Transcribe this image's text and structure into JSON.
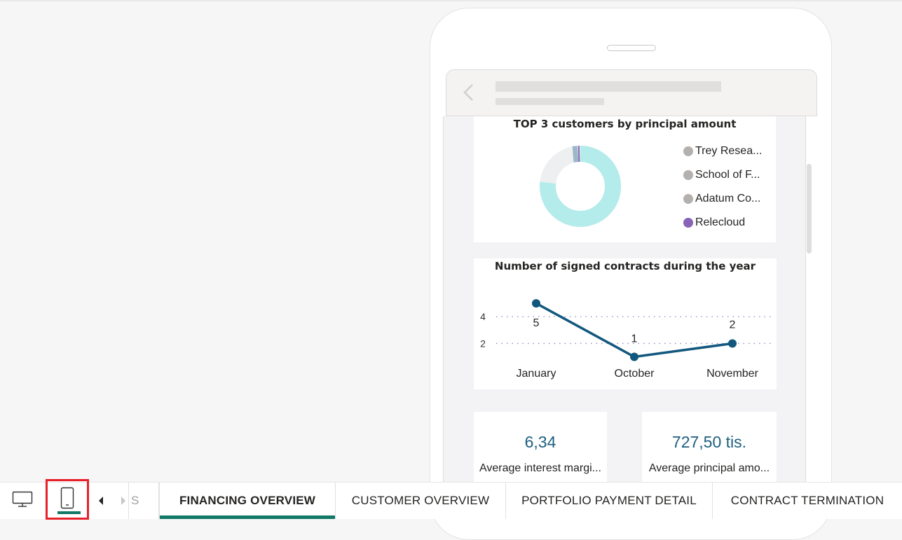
{
  "donut_chart": {
    "title": "TOP 3 customers by principal amount",
    "legend": [
      {
        "label": "Trey Resea...",
        "color": "#b3b0ad"
      },
      {
        "label": "School of F...",
        "color": "#b3b0ad"
      },
      {
        "label": "Adatum Co...",
        "color": "#b3b0ad"
      },
      {
        "label": "Relecloud",
        "color": "#8764b8"
      }
    ]
  },
  "chart_data": {
    "type": "line",
    "title": "Number of signed contracts during the year",
    "categories": [
      "January",
      "October",
      "November"
    ],
    "values": [
      5,
      1,
      2
    ],
    "data_labels": [
      "5",
      "1",
      "2"
    ],
    "ytick_labels": [
      "4",
      "2"
    ],
    "yticks": [
      4,
      2
    ],
    "ylim": [
      0.5,
      6
    ],
    "series_color": "#12587e",
    "grid": true
  },
  "cards": [
    {
      "value": "6,34",
      "label": "Average interest margi..."
    },
    {
      "value": "727,50 tis.",
      "label": "Average principal amo..."
    }
  ],
  "bottom_bar": {
    "desktop_icon": "desktop-monitor-icon",
    "mobile_icon": "mobile-phone-icon",
    "prev_icon": "caret-left-icon",
    "next_icon": "caret-right-icon",
    "partial_tab": "S",
    "tabs": [
      {
        "label": "FINANCING OVERVIEW",
        "active": true
      },
      {
        "label": "CUSTOMER OVERVIEW",
        "active": false
      },
      {
        "label": "PORTFOLIO PAYMENT DETAIL",
        "active": false
      },
      {
        "label": "CONTRACT TERMINATION",
        "active": false
      }
    ]
  },
  "colors": {
    "accent": "#117865",
    "donut_main": "#b4ebeb",
    "donut_rest": "#eeeff0",
    "value_text": "#1d5f7f",
    "highlight_border": "#e8202a"
  }
}
